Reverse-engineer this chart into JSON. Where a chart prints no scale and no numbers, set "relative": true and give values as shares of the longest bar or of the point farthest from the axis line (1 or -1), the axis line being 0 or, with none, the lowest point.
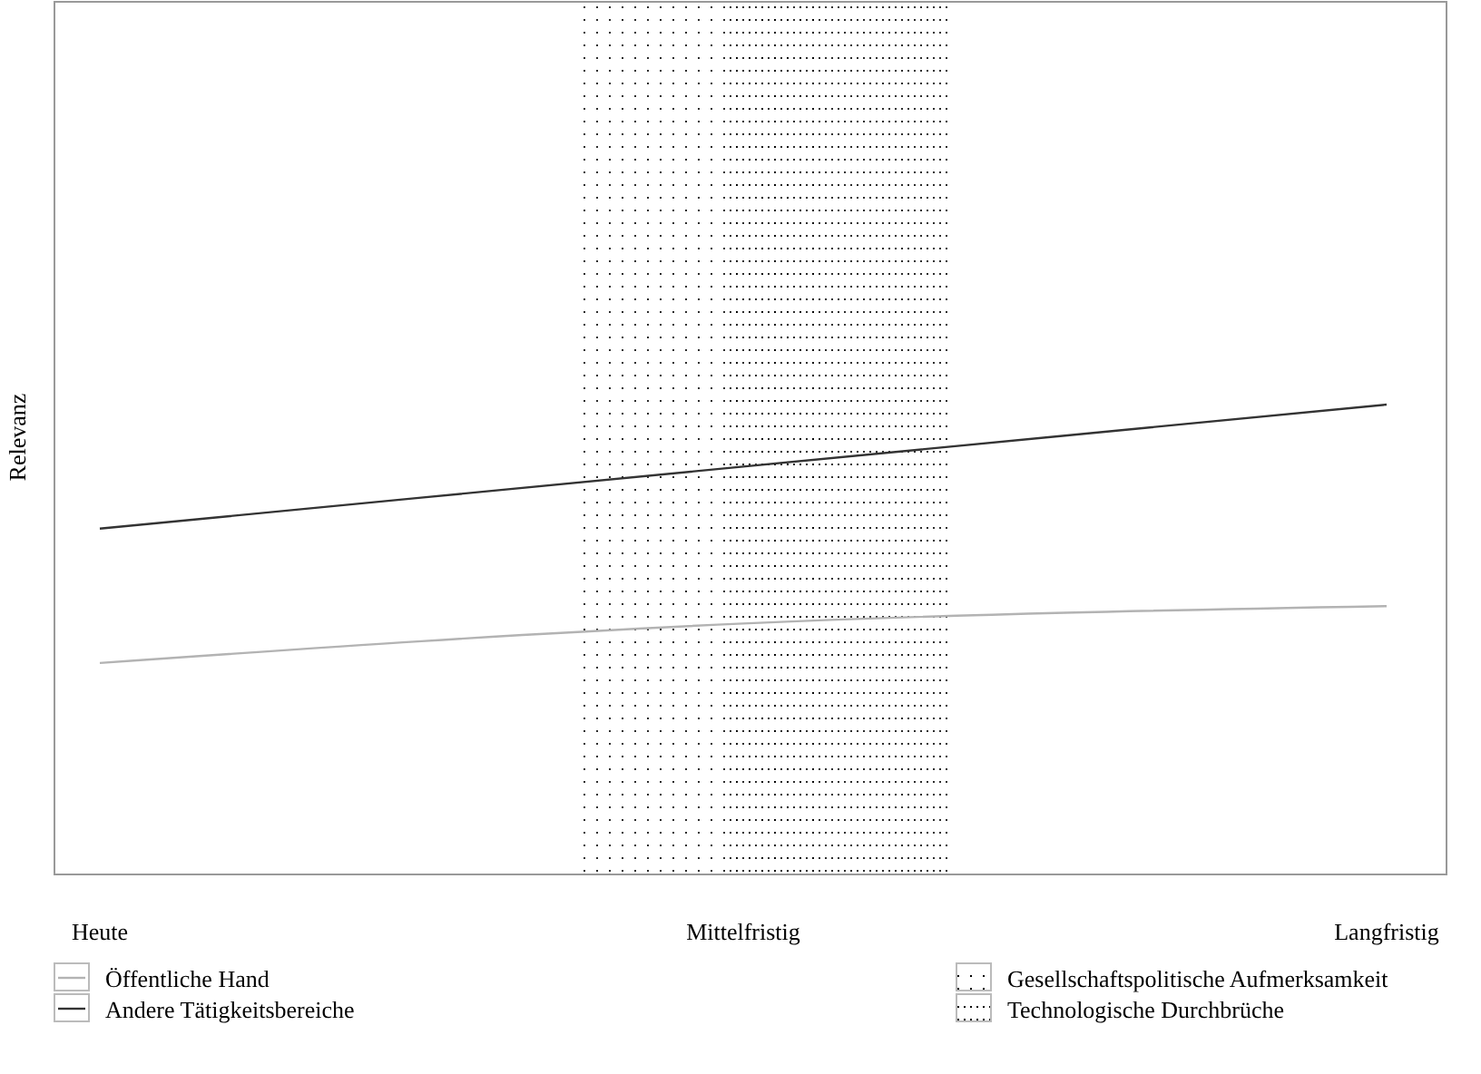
{
  "chart_data": {
    "type": "line",
    "relative": true,
    "ylabel": "Relevanz",
    "categories": [
      "Heute",
      "Mittelfristig",
      "Langfristig"
    ],
    "series": [
      {
        "name": "Öffentliche Hand",
        "color": "#b3b3b3",
        "values": [
          0.45,
          0.534,
          0.571
        ]
      },
      {
        "name": "Andere Tätigkeitsbereiche",
        "color": "#333333",
        "values": [
          0.736,
          0.868,
          1
        ]
      }
    ],
    "annotations": [
      "Gesellschaftspolitische Aufmerksamkeit",
      "Technologische Durchbrüche"
    ],
    "legend": "bottom",
    "marker": "none",
    "line_style": "solid"
  }
}
